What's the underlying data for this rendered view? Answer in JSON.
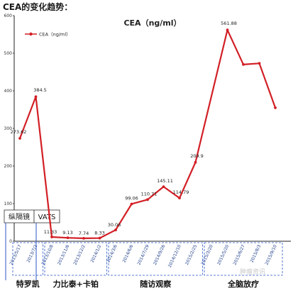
{
  "page": {
    "heading": "CEA的变化趋势："
  },
  "chart_data": {
    "type": "line",
    "title": "CEA（ng/ml）",
    "legend": {
      "label": "CEA（ng/ml）",
      "placement": "top-left"
    },
    "ylim": [
      0,
      600
    ],
    "yticks": [
      0,
      100,
      200,
      300,
      400,
      500,
      600
    ],
    "grid": false,
    "categories": [
      "2013/5/17",
      "2013/7/2",
      "2013/10/8",
      "2013/11/6",
      "2013/12/2",
      "2014/1/2",
      "2014/3/6",
      "2014/6/6",
      "2014/7/29",
      "2014/9/26",
      "2014/12/10",
      "2015/2/25",
      "2015/3/20",
      "2015/5/20",
      "2015/6/27",
      "2015/8/3",
      "2015/9/10"
    ],
    "series": [
      {
        "name": "CEA（ng/ml）",
        "values": [
          273.62,
          384.5,
          11.33,
          9.13,
          7.74,
          8.33,
          30.06,
          99.06,
          110.71,
          145.11,
          114.79,
          209.9,
          null,
          561.88,
          470,
          473,
          355
        ],
        "labels": [
          "273.62",
          "384.5",
          "11.33",
          "9.13",
          "7.74",
          "8.33",
          "30.06",
          "99.06",
          "110.71",
          "145.11",
          "114.79",
          "209.9",
          "",
          "561.88",
          "",
          "",
          ""
        ],
        "color": "#d21f26"
      }
    ],
    "annotations": {
      "surgeries": [
        {
          "label": "纵隔镜",
          "after_index": 0
        },
        {
          "label": "VATS",
          "after_index": 1
        }
      ],
      "phases": [
        {
          "label": "特罗凯",
          "from": 0,
          "to": 1
        },
        {
          "label": "力比泰+卡铂",
          "from": 2,
          "to": 5
        },
        {
          "label": "随访观察",
          "from": 6,
          "to": 11
        },
        {
          "label": "全脑放疗",
          "from": 12,
          "to": 16
        }
      ]
    }
  },
  "watermark": {
    "text": "肿瘤资讯"
  }
}
